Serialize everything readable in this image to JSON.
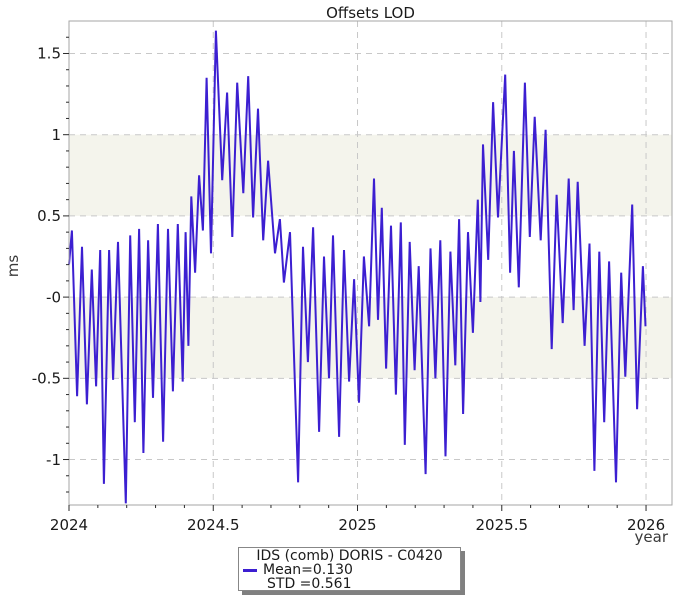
{
  "colors": {
    "line": "#3c1fd1",
    "band": "#f4f4ec",
    "grid": "#c8c8c8",
    "border": "#a6a6a6",
    "tick": "#2a2a2a",
    "text": "#1a1a1a",
    "legend_shadow": "#808080"
  },
  "legend": {
    "title": "IDS (comb) DORIS - C0420",
    "mean": "Mean=0.130",
    "std": "STD =0.561"
  },
  "chart_data": {
    "type": "line",
    "title": "Offsets LOD",
    "xlabel": "year",
    "ylabel": "ms",
    "xlim": [
      2024,
      2026.09
    ],
    "ylim": [
      -1.28,
      1.7
    ],
    "x_ticks": {
      "values": [
        2024,
        2024.5,
        2025,
        2025.5,
        2026
      ],
      "labels": [
        "2024",
        "2024.5",
        "2025",
        "2025.5",
        "2026"
      ],
      "minor_step": 0.1
    },
    "y_ticks": {
      "values": [
        -1,
        -0.5,
        0,
        0.5,
        1,
        1.5
      ],
      "labels": [
        "-1",
        "-0.5",
        "-0",
        "0.5",
        "1",
        "1.5"
      ],
      "minor_step": 0.1
    },
    "grid": "dashed lines at major ticks",
    "shaded_bands": [
      {
        "from": 0.5,
        "to": 1.0
      },
      {
        "from": -0.5,
        "to": 0.0
      }
    ],
    "legend_position": "below plot, centered",
    "series": [
      {
        "name": "IDS (comb) DORIS - C0420",
        "mean": 0.13,
        "std": 0.561,
        "points": [
          [
            2024.0,
            0.2
          ],
          [
            2024.01,
            0.41
          ],
          [
            2024.028,
            -0.61
          ],
          [
            2024.045,
            0.31
          ],
          [
            2024.062,
            -0.66
          ],
          [
            2024.079,
            0.17
          ],
          [
            2024.094,
            -0.55
          ],
          [
            2024.108,
            0.29
          ],
          [
            2024.121,
            -1.15
          ],
          [
            2024.139,
            0.29
          ],
          [
            2024.153,
            -0.51
          ],
          [
            2024.17,
            0.34
          ],
          [
            2024.197,
            -1.27
          ],
          [
            2024.212,
            0.38
          ],
          [
            2024.228,
            -0.77
          ],
          [
            2024.243,
            0.42
          ],
          [
            2024.258,
            -0.96
          ],
          [
            2024.274,
            0.35
          ],
          [
            2024.291,
            -0.62
          ],
          [
            2024.308,
            0.45
          ],
          [
            2024.326,
            -0.89
          ],
          [
            2024.343,
            0.42
          ],
          [
            2024.36,
            -0.58
          ],
          [
            2024.377,
            0.45
          ],
          [
            2024.394,
            -0.52
          ],
          [
            2024.404,
            0.4
          ],
          [
            2024.414,
            -0.3
          ],
          [
            2024.424,
            0.62
          ],
          [
            2024.437,
            0.15
          ],
          [
            2024.451,
            0.75
          ],
          [
            2024.464,
            0.41
          ],
          [
            2024.477,
            1.35
          ],
          [
            2024.492,
            0.27
          ],
          [
            2024.509,
            1.64
          ],
          [
            2024.531,
            0.72
          ],
          [
            2024.548,
            1.26
          ],
          [
            2024.566,
            0.37
          ],
          [
            2024.583,
            1.32
          ],
          [
            2024.604,
            0.64
          ],
          [
            2024.621,
            1.36
          ],
          [
            2024.638,
            0.49
          ],
          [
            2024.655,
            1.16
          ],
          [
            2024.673,
            0.35
          ],
          [
            2024.69,
            0.84
          ],
          [
            2024.714,
            0.27
          ],
          [
            2024.731,
            0.48
          ],
          [
            2024.745,
            0.09
          ],
          [
            2024.766,
            0.4
          ],
          [
            2024.794,
            -1.14
          ],
          [
            2024.811,
            0.31
          ],
          [
            2024.828,
            -0.4
          ],
          [
            2024.846,
            0.43
          ],
          [
            2024.867,
            -0.83
          ],
          [
            2024.884,
            0.25
          ],
          [
            2024.901,
            -0.5
          ],
          [
            2024.915,
            0.38
          ],
          [
            2024.936,
            -0.86
          ],
          [
            2024.953,
            0.29
          ],
          [
            2024.971,
            -0.52
          ],
          [
            2024.988,
            0.11
          ],
          [
            2025.005,
            -0.65
          ],
          [
            2025.022,
            0.25
          ],
          [
            2025.04,
            -0.18
          ],
          [
            2025.057,
            0.73
          ],
          [
            2025.071,
            -0.14
          ],
          [
            2025.084,
            0.55
          ],
          [
            2025.099,
            -0.44
          ],
          [
            2025.116,
            0.44
          ],
          [
            2025.133,
            -0.6
          ],
          [
            2025.15,
            0.46
          ],
          [
            2025.164,
            -0.91
          ],
          [
            2025.181,
            0.34
          ],
          [
            2025.198,
            -0.45
          ],
          [
            2025.212,
            0.19
          ],
          [
            2025.236,
            -1.09
          ],
          [
            2025.253,
            0.3
          ],
          [
            2025.27,
            -0.5
          ],
          [
            2025.287,
            0.35
          ],
          [
            2025.305,
            -0.98
          ],
          [
            2025.322,
            0.28
          ],
          [
            2025.339,
            -0.42
          ],
          [
            2025.352,
            0.48
          ],
          [
            2025.366,
            -0.72
          ],
          [
            2025.383,
            0.4
          ],
          [
            2025.4,
            -0.22
          ],
          [
            2025.417,
            0.6
          ],
          [
            2025.426,
            -0.03
          ],
          [
            2025.435,
            0.94
          ],
          [
            2025.453,
            0.23
          ],
          [
            2025.47,
            1.2
          ],
          [
            2025.487,
            0.49
          ],
          [
            2025.512,
            1.37
          ],
          [
            2025.529,
            0.15
          ],
          [
            2025.542,
            0.9
          ],
          [
            2025.559,
            0.06
          ],
          [
            2025.58,
            1.32
          ],
          [
            2025.597,
            0.37
          ],
          [
            2025.614,
            1.11
          ],
          [
            2025.635,
            0.35
          ],
          [
            2025.652,
            1.03
          ],
          [
            2025.673,
            -0.32
          ],
          [
            2025.69,
            0.63
          ],
          [
            2025.711,
            -0.16
          ],
          [
            2025.732,
            0.73
          ],
          [
            2025.749,
            -0.08
          ],
          [
            2025.763,
            0.71
          ],
          [
            2025.787,
            -0.3
          ],
          [
            2025.804,
            0.33
          ],
          [
            2025.821,
            -1.07
          ],
          [
            2025.838,
            0.28
          ],
          [
            2025.855,
            -0.77
          ],
          [
            2025.872,
            0.22
          ],
          [
            2025.896,
            -1.14
          ],
          [
            2025.914,
            0.15
          ],
          [
            2025.928,
            -0.49
          ],
          [
            2025.952,
            0.57
          ],
          [
            2025.969,
            -0.69
          ],
          [
            2025.989,
            0.19
          ],
          [
            2025.998,
            -0.18
          ]
        ]
      }
    ]
  }
}
